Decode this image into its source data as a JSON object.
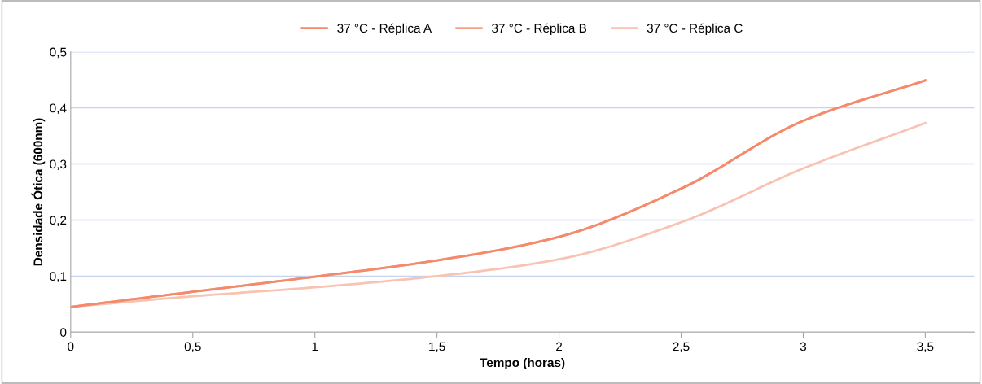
{
  "chart_data": {
    "type": "line",
    "xlabel": "Tempo (horas)",
    "ylabel": "Densidade Ótica (600nm)",
    "x": [
      0,
      0.5,
      1,
      1.5,
      2,
      2.5,
      3,
      3.5
    ],
    "series": [
      {
        "name": "37 °C - Réplica A",
        "color": "#f4896b",
        "values": [
          0.045,
          0.072,
          0.099,
          0.128,
          0.17,
          0.256,
          0.377,
          0.449
        ]
      },
      {
        "name": "37 °C - Réplica B",
        "color": "#f6a088",
        "values": [
          0.045,
          0.072,
          0.099,
          0.128,
          0.17,
          0.256,
          0.377,
          0.449
        ]
      },
      {
        "name": "37 °C - Réplica C",
        "color": "#f9c3b2",
        "values": [
          0.045,
          0.064,
          0.08,
          0.1,
          0.13,
          0.196,
          0.292,
          0.373
        ]
      }
    ],
    "xlim": [
      0,
      3.7
    ],
    "xticks": [
      {
        "value": 0,
        "label": "0"
      },
      {
        "value": 0.5,
        "label": "0,5"
      },
      {
        "value": 1,
        "label": "1"
      },
      {
        "value": 1.5,
        "label": "1,5"
      },
      {
        "value": 2,
        "label": "2"
      },
      {
        "value": 2.5,
        "label": "2,5"
      },
      {
        "value": 3,
        "label": "3"
      },
      {
        "value": 3.5,
        "label": "3,5"
      }
    ],
    "ylim": [
      0,
      0.5
    ],
    "yticks": [
      {
        "value": 0,
        "label": "0"
      },
      {
        "value": 0.1,
        "label": "0,1"
      },
      {
        "value": 0.2,
        "label": "0,2"
      },
      {
        "value": 0.3,
        "label": "0,3"
      },
      {
        "value": 0.4,
        "label": "0,4"
      },
      {
        "value": 0.5,
        "label": "0,5"
      }
    ],
    "grid": "y",
    "legend": "top",
    "marker": "none",
    "line_style": "solid"
  }
}
